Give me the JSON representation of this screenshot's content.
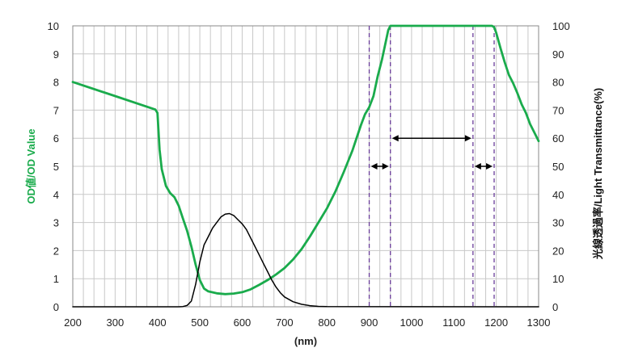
{
  "chart_data": {
    "type": "line",
    "title": "",
    "xlabel": "(nm)",
    "ylabel_left": "OD値/OD Value",
    "ylabel_right": "光線透過率/Light Transmittance(%)",
    "xlim": [
      200,
      1300
    ],
    "ylim_left": [
      0,
      10
    ],
    "ylim_right": [
      0,
      100
    ],
    "x_ticks": [
      "200",
      "300",
      "400",
      "500",
      "600",
      "700",
      "800",
      "900",
      "1000",
      "1100",
      "1200",
      "1300"
    ],
    "y_left_ticks": [
      "0",
      "1",
      "2",
      "3",
      "4",
      "5",
      "6",
      "7",
      "8",
      "9",
      "10"
    ],
    "y_right_ticks": [
      "0",
      "10",
      "20",
      "30",
      "40",
      "50",
      "60",
      "70",
      "80",
      "90",
      "100"
    ],
    "grid": true,
    "colors": {
      "od": "#1aab4c",
      "transmittance": "#000000",
      "markers": "#6a3d9a",
      "arrows": "#000000"
    },
    "series": [
      {
        "axis": "left",
        "x": [
          200,
          300,
          395,
          400,
          405,
          410,
          420,
          430,
          440,
          450,
          460,
          470,
          480,
          490,
          500,
          510,
          520,
          540,
          560,
          580,
          600,
          620,
          640,
          660,
          680,
          700,
          720,
          740,
          760,
          780,
          800,
          820,
          840,
          860,
          880,
          890,
          900,
          910,
          920,
          930,
          940,
          945,
          950,
          1000,
          1050,
          1100,
          1150,
          1190,
          1195,
          1200,
          1210,
          1220,
          1230,
          1240,
          1250,
          1260,
          1270,
          1280,
          1290,
          1300
        ],
        "values": [
          8.0,
          7.5,
          7.02,
          6.9,
          5.6,
          4.9,
          4.3,
          4.05,
          3.9,
          3.6,
          3.15,
          2.7,
          2.15,
          1.5,
          0.95,
          0.65,
          0.55,
          0.48,
          0.45,
          0.47,
          0.52,
          0.62,
          0.78,
          0.95,
          1.15,
          1.38,
          1.68,
          2.05,
          2.5,
          3.0,
          3.5,
          4.1,
          4.8,
          5.55,
          6.45,
          6.85,
          7.1,
          7.5,
          8.2,
          8.8,
          9.5,
          9.85,
          10.0,
          10.0,
          10.0,
          10.0,
          10.0,
          10.0,
          9.95,
          9.75,
          9.2,
          8.7,
          8.25,
          7.95,
          7.6,
          7.2,
          6.9,
          6.5,
          6.2,
          5.9
        ]
      },
      {
        "axis": "right",
        "x": [
          200,
          450,
          460,
          470,
          480,
          490,
          500,
          510,
          520,
          530,
          540,
          550,
          560,
          570,
          580,
          590,
          600,
          610,
          620,
          630,
          640,
          650,
          660,
          670,
          680,
          690,
          700,
          720,
          740,
          760,
          780,
          800,
          1300
        ],
        "values": [
          0,
          0,
          0.1,
          0.5,
          2,
          8,
          16,
          22,
          25,
          28,
          30,
          32,
          33,
          33.2,
          32.5,
          31,
          29.5,
          27.5,
          24.5,
          21.5,
          18.5,
          15.5,
          12.5,
          9.5,
          7,
          5,
          3.5,
          1.8,
          0.9,
          0.4,
          0.15,
          0.05,
          0
        ]
      }
    ],
    "vertical_markers_nm": [
      900,
      950,
      1145,
      1195
    ],
    "double_arrows": [
      {
        "x1": 900,
        "x2": 950,
        "y": 5
      },
      {
        "x1": 950,
        "x2": 1145,
        "y": 6
      },
      {
        "x1": 1145,
        "x2": 1195,
        "y": 5
      }
    ]
  }
}
